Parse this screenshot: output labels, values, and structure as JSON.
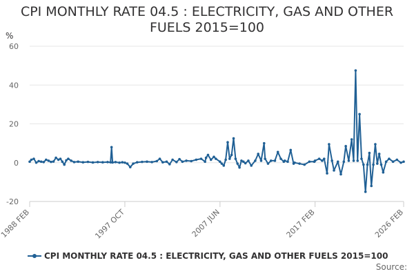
{
  "title": "CPI MONTHLY RATE 04.5 : ELECTRICITY, GAS AND OTHER FUELS 2015=100",
  "source_label": "Source:",
  "colors": {
    "series": "#206095",
    "grid": "#e6e6e6",
    "axis": "#cccccc"
  },
  "chart_data": {
    "type": "line",
    "title": "CPI MONTHLY RATE 04.5 : ELECTRICITY, GAS AND OTHER FUELS 2015=100",
    "ylabel": "%",
    "xlabel": "",
    "ylim": [
      -20,
      60
    ],
    "yticks": [
      -20,
      0,
      20,
      40,
      60
    ],
    "xlim": [
      1988.08,
      2026.08
    ],
    "xticks": [
      {
        "label": "1988 FEB",
        "x": 1988.08
      },
      {
        "label": "1997 OCT",
        "x": 1997.75
      },
      {
        "label": "2007 JUN",
        "x": 2007.42
      },
      {
        "label": "2017 FEB",
        "x": 2017.08
      },
      {
        "label": "2026 FEB",
        "x": 2026.08
      }
    ],
    "grid": true,
    "legend_position": "bottom",
    "series": [
      {
        "name": "CPI MONTHLY RATE 04.5 : ELECTRICITY, GAS AND OTHER FUELS 2015=100",
        "points": [
          [
            1988.08,
            0.5
          ],
          [
            1988.25,
            1.5
          ],
          [
            1988.5,
            2.0
          ],
          [
            1988.75,
            0.0
          ],
          [
            1989.0,
            0.8
          ],
          [
            1989.25,
            0.5
          ],
          [
            1989.5,
            0.3
          ],
          [
            1989.75,
            1.5
          ],
          [
            1990.0,
            1.0
          ],
          [
            1990.25,
            0.4
          ],
          [
            1990.5,
            0.6
          ],
          [
            1990.75,
            2.5
          ],
          [
            1991.0,
            1.5
          ],
          [
            1991.2,
            2.0
          ],
          [
            1991.4,
            0.5
          ],
          [
            1991.6,
            -1.0
          ],
          [
            1991.8,
            1.2
          ],
          [
            1992.0,
            2.0
          ],
          [
            1992.3,
            1.0
          ],
          [
            1992.6,
            0.3
          ],
          [
            1993.0,
            0.5
          ],
          [
            1993.5,
            0.2
          ],
          [
            1994.0,
            0.4
          ],
          [
            1994.5,
            0.1
          ],
          [
            1995.0,
            0.3
          ],
          [
            1995.5,
            0.2
          ],
          [
            1996.0,
            0.3
          ],
          [
            1996.3,
            0.2
          ],
          [
            1996.4,
            8.0
          ],
          [
            1996.5,
            0.1
          ],
          [
            1996.8,
            0.3
          ],
          [
            1997.2,
            0.0
          ],
          [
            1997.5,
            0.2
          ],
          [
            1997.75,
            0.0
          ],
          [
            1998.0,
            -0.5
          ],
          [
            1998.3,
            -2.3
          ],
          [
            1998.6,
            -0.5
          ],
          [
            1999.0,
            0.2
          ],
          [
            1999.5,
            0.4
          ],
          [
            2000.0,
            0.5
          ],
          [
            2000.5,
            0.3
          ],
          [
            2001.0,
            0.8
          ],
          [
            2001.3,
            2.0
          ],
          [
            2001.6,
            0.2
          ],
          [
            2002.0,
            0.5
          ],
          [
            2002.3,
            -0.8
          ],
          [
            2002.6,
            1.5
          ],
          [
            2003.0,
            0.3
          ],
          [
            2003.3,
            1.8
          ],
          [
            2003.6,
            0.5
          ],
          [
            2004.0,
            1.0
          ],
          [
            2004.5,
            0.8
          ],
          [
            2005.0,
            1.5
          ],
          [
            2005.5,
            2.0
          ],
          [
            2005.9,
            0.5
          ],
          [
            2006.0,
            2.5
          ],
          [
            2006.2,
            4.0
          ],
          [
            2006.5,
            1.5
          ],
          [
            2006.8,
            3.0
          ],
          [
            2007.0,
            2.0
          ],
          [
            2007.42,
            0.5
          ],
          [
            2007.6,
            -0.5
          ],
          [
            2007.8,
            -1.5
          ],
          [
            2008.0,
            1.5
          ],
          [
            2008.2,
            10.5
          ],
          [
            2008.4,
            2.0
          ],
          [
            2008.6,
            4.0
          ],
          [
            2008.8,
            12.5
          ],
          [
            2009.0,
            2.0
          ],
          [
            2009.2,
            -0.5
          ],
          [
            2009.4,
            -2.5
          ],
          [
            2009.6,
            1.0
          ],
          [
            2009.8,
            0.5
          ],
          [
            2010.0,
            -0.3
          ],
          [
            2010.3,
            1.0
          ],
          [
            2010.6,
            -1.5
          ],
          [
            2011.0,
            1.0
          ],
          [
            2011.3,
            4.5
          ],
          [
            2011.6,
            1.0
          ],
          [
            2011.9,
            10.0
          ],
          [
            2012.0,
            2.0
          ],
          [
            2012.3,
            -0.5
          ],
          [
            2012.6,
            1.0
          ],
          [
            2013.0,
            1.0
          ],
          [
            2013.3,
            5.5
          ],
          [
            2013.6,
            2.0
          ],
          [
            2013.9,
            0.5
          ],
          [
            2014.0,
            1.0
          ],
          [
            2014.3,
            0.5
          ],
          [
            2014.6,
            6.5
          ],
          [
            2014.9,
            -0.5
          ],
          [
            2015.0,
            0.0
          ],
          [
            2015.5,
            -0.5
          ],
          [
            2016.0,
            -1.0
          ],
          [
            2016.5,
            0.5
          ],
          [
            2017.0,
            0.5
          ],
          [
            2017.08,
            1.0
          ],
          [
            2017.5,
            2.0
          ],
          [
            2017.8,
            1.0
          ],
          [
            2018.0,
            2.0
          ],
          [
            2018.3,
            -5.5
          ],
          [
            2018.5,
            9.5
          ],
          [
            2018.8,
            1.0
          ],
          [
            2019.0,
            -4.0
          ],
          [
            2019.4,
            0.5
          ],
          [
            2019.7,
            -6.0
          ],
          [
            2020.0,
            0.5
          ],
          [
            2020.2,
            8.5
          ],
          [
            2020.5,
            1.0
          ],
          [
            2020.8,
            12.0
          ],
          [
            2021.0,
            1.0
          ],
          [
            2021.2,
            47.5
          ],
          [
            2021.4,
            1.0
          ],
          [
            2021.6,
            25.0
          ],
          [
            2021.8,
            2.0
          ],
          [
            2022.0,
            -1.0
          ],
          [
            2022.2,
            -15.0
          ],
          [
            2022.4,
            -1.0
          ],
          [
            2022.6,
            5.0
          ],
          [
            2022.8,
            -12.0
          ],
          [
            2023.0,
            -1.0
          ],
          [
            2023.2,
            9.5
          ],
          [
            2023.4,
            -0.5
          ],
          [
            2023.6,
            4.5
          ],
          [
            2023.8,
            -1.0
          ],
          [
            2024.0,
            -5.0
          ],
          [
            2024.3,
            0.5
          ],
          [
            2024.6,
            2.0
          ],
          [
            2025.0,
            0.5
          ],
          [
            2025.4,
            1.5
          ],
          [
            2025.8,
            0.0
          ],
          [
            2026.08,
            0.5
          ]
        ]
      }
    ]
  }
}
